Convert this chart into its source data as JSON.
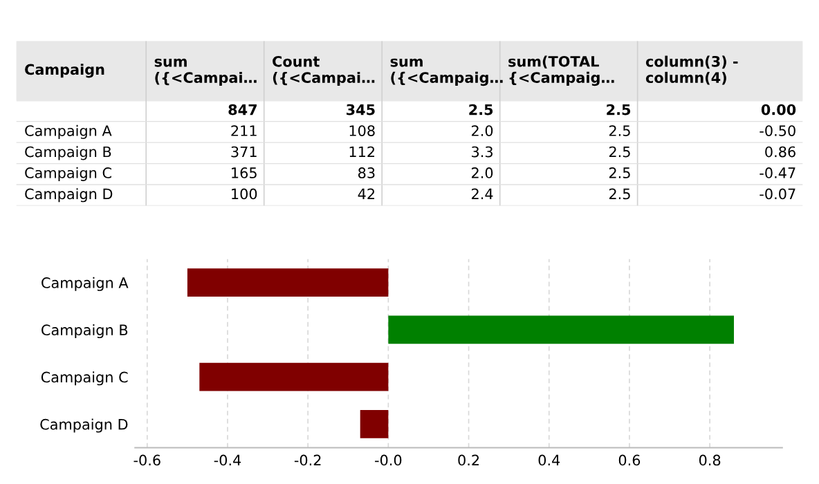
{
  "chart_data": [
    {
      "type": "other",
      "categories": [
        "Campaign",
        "sum\n({<Campai…",
        "Count\n({<Campai…",
        "sum\n({<Campaig…",
        "sum(TOTAL\n{<Campaig…",
        "column(3) -\ncolumn(4)"
      ],
      "y_categories": [
        null,
        "Campaign A",
        "Campaign B",
        "Campaign C",
        "Campaign D"
      ],
      "cell_labels": [
        [
          "847",
          "345",
          "2.5",
          "2.5",
          "0.00"
        ],
        [
          "211",
          "108",
          "2.0",
          "2.5",
          "-0.50"
        ],
        [
          "371",
          "112",
          "3.3",
          "2.5",
          "0.86"
        ],
        [
          "165",
          "83",
          "2.0",
          "2.5",
          "-0.47"
        ],
        [
          "100",
          "42",
          "2.4",
          "2.5",
          "-0.07"
        ]
      ]
    },
    {
      "type": "bar",
      "orientation": "horizontal",
      "categories": [
        "Campaign A",
        "Campaign B",
        "Campaign C",
        "Campaign D"
      ],
      "values": [
        -0.5,
        0.86,
        -0.47,
        -0.07
      ],
      "colors": [
        "#800000",
        "#008000",
        "#800000",
        "#800000"
      ],
      "xlim": [
        -0.63,
        0.98
      ],
      "xticks": [
        -0.6,
        -0.4,
        -0.2,
        {
          "value": 0,
          "label": "-0.0"
        },
        0.2,
        0.4,
        0.6,
        0.8
      ],
      "grid": "x"
    }
  ]
}
